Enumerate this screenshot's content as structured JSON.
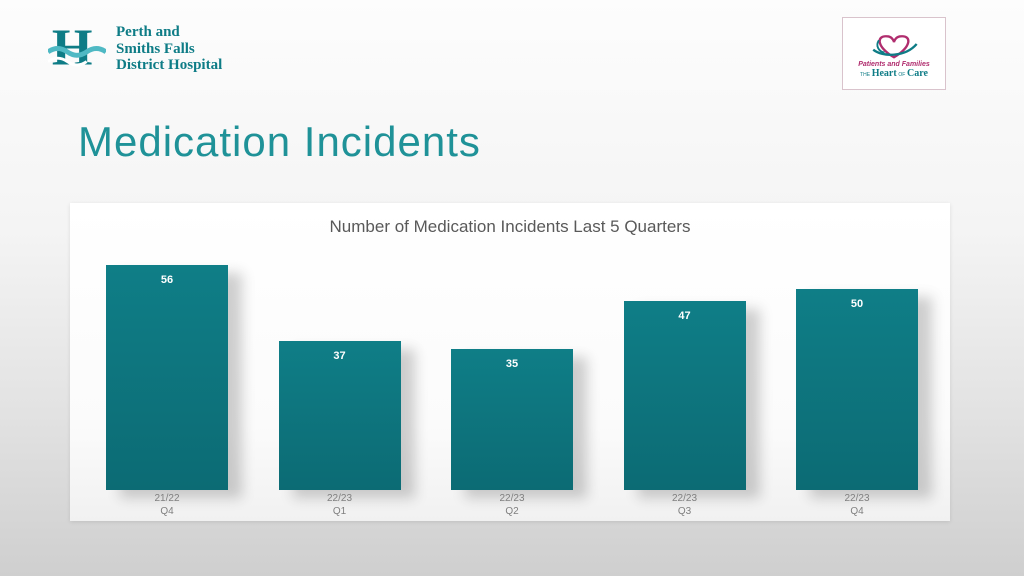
{
  "slide": {
    "title": "Medication Incidents"
  },
  "header": {
    "hospital_logo": {
      "letter": "H",
      "line1": "Perth and",
      "line2": "Smiths Falls",
      "line3": "District Hospital"
    },
    "care_logo": {
      "tagline": "Patients and Families",
      "the": "the",
      "heart": "Heart",
      "of": "of",
      "care": "Care"
    }
  },
  "chart_data": {
    "type": "bar",
    "title": "Number of Medication Incidents Last 5 Quarters",
    "categories": [
      "21/22\nQ4",
      "22/23\nQ1",
      "22/23\nQ2",
      "22/23\nQ3",
      "22/23\nQ4"
    ],
    "values": [
      56,
      37,
      35,
      47,
      50
    ],
    "xlabel": "",
    "ylabel": "",
    "ylim": [
      0,
      60
    ],
    "grid": false,
    "legend": "none",
    "bar_color": "#0f7e87",
    "data_label_color": "#ffffff"
  },
  "colors": {
    "teal": "#0e7c86",
    "teal_light": "#4fb9c4",
    "magenta": "#b02d6e",
    "title_teal": "#1f9298",
    "bar_color": "#0f7e87",
    "bar_color_dark": "#0c6b74"
  }
}
